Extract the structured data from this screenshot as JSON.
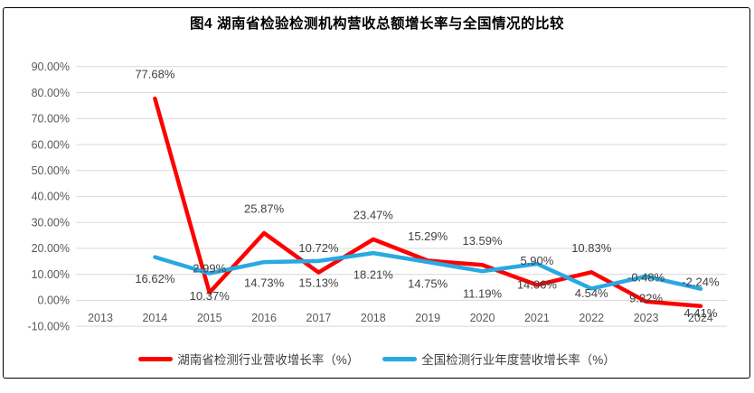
{
  "title": "图4 湖南省检验检测机构营收总额增长率与全国情况的比较",
  "colors": {
    "hunan_series": "#FF0000",
    "national_series": "#29A9E2",
    "gridline": "#D9D9D9",
    "axis_text": "#595959",
    "label_text": "#404040",
    "title_text": "#000000",
    "frame_border": "#000000"
  },
  "chart_data": {
    "type": "line",
    "title": "图4 湖南省检验检测机构营收总额增长率与全国情况的比较",
    "categories": [
      "2013",
      "2014",
      "2015",
      "2016",
      "2017",
      "2018",
      "2019",
      "2020",
      "2021",
      "2022",
      "2023",
      "2024"
    ],
    "series": [
      {
        "name": "湖南省检测行业营收增长率（%）",
        "color": "#FF0000",
        "values": [
          null,
          77.68,
          2.99,
          25.87,
          10.72,
          23.47,
          15.29,
          13.59,
          5.9,
          10.83,
          -0.48,
          -2.24
        ],
        "labels": [
          null,
          "77.68%",
          "2.99%",
          "25.87%",
          "10.72%",
          "23.47%",
          "15.29%",
          "13.59%",
          "5.90%",
          "10.83%",
          "-0.48%",
          "-2.24%"
        ],
        "label_side": "above",
        "label_dy": [
          0,
          -27,
          -27,
          -27,
          -27,
          -27,
          -27,
          -27,
          -27,
          -27,
          -27,
          -27
        ]
      },
      {
        "name": "全国检测行业年度营收增长率（%）",
        "color": "#29A9E2",
        "values": [
          null,
          16.62,
          10.37,
          14.73,
          15.13,
          18.21,
          14.75,
          11.19,
          14.06,
          4.54,
          9.22,
          4.41
        ],
        "labels": [
          null,
          "16.62%",
          "10.37%",
          "14.73%",
          "15.13%",
          "18.21%",
          "14.75%",
          "11.19%",
          "14.06%",
          "4.54%",
          "9.22%",
          "4.41%"
        ],
        "label_side": "below",
        "label_dy": [
          0,
          24,
          25,
          23,
          24,
          24,
          24,
          25,
          23,
          5,
          24,
          27
        ]
      }
    ],
    "y_ticks": [
      "90.00%",
      "80.00%",
      "70.00%",
      "60.00%",
      "50.00%",
      "40.00%",
      "30.00%",
      "20.00%",
      "10.00%",
      "0.00%",
      "-10.00%"
    ],
    "ylim": [
      -10,
      90
    ],
    "y_step": 10,
    "xlabel": "",
    "ylabel": "",
    "grid": true,
    "legend_position": "bottom"
  }
}
